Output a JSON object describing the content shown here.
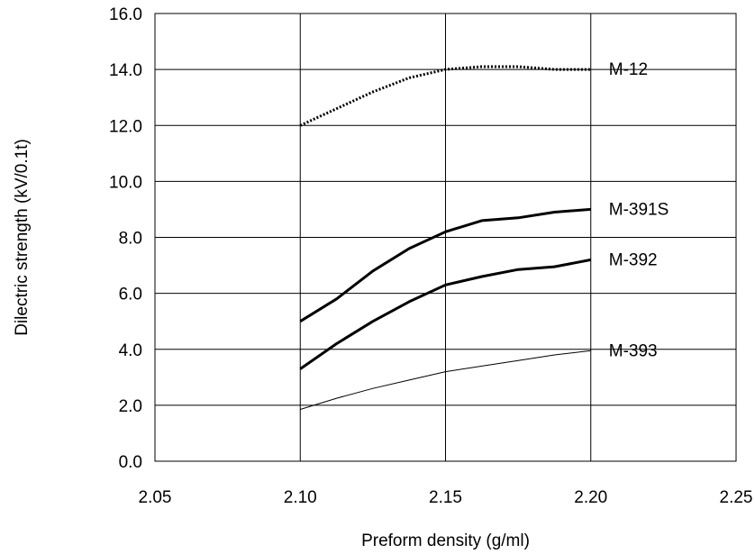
{
  "chart_data": {
    "type": "line",
    "xlabel": "Preform density (g/ml)",
    "ylabel": "Dilectric strength (kV/0.1t)",
    "xlim": [
      2.05,
      2.25
    ],
    "ylim": [
      0.0,
      16.0
    ],
    "x_ticks": [
      "2.05",
      "2.10",
      "2.15",
      "2.20",
      "2.25"
    ],
    "y_ticks": [
      "0.0",
      "2.0",
      "4.0",
      "6.0",
      "8.0",
      "10.0",
      "12.0",
      "14.0",
      "16.0"
    ],
    "grid": true,
    "legend": "inline labels at right end of each line",
    "series": [
      {
        "name": "M-12",
        "line_style": "dotted",
        "line_weight": "heavy",
        "color": "#000000",
        "x": [
          2.1,
          2.1125,
          2.125,
          2.1375,
          2.15,
          2.1625,
          2.175,
          2.1875,
          2.2
        ],
        "y": [
          12.0,
          12.6,
          13.2,
          13.7,
          14.0,
          14.1,
          14.1,
          14.0,
          14.0
        ]
      },
      {
        "name": "M-391S",
        "line_style": "solid",
        "line_weight": "heavy",
        "color": "#000000",
        "x": [
          2.1,
          2.1125,
          2.125,
          2.1375,
          2.15,
          2.1625,
          2.175,
          2.1875,
          2.2
        ],
        "y": [
          5.0,
          5.8,
          6.8,
          7.6,
          8.2,
          8.6,
          8.7,
          8.9,
          9.0
        ]
      },
      {
        "name": "M-392",
        "line_style": "solid",
        "line_weight": "heavy",
        "color": "#000000",
        "x": [
          2.1,
          2.1125,
          2.125,
          2.1375,
          2.15,
          2.1625,
          2.175,
          2.1875,
          2.2
        ],
        "y": [
          3.3,
          4.2,
          5.0,
          5.7,
          6.3,
          6.6,
          6.85,
          6.95,
          7.2
        ]
      },
      {
        "name": "M-393",
        "line_style": "solid",
        "line_weight": "thin",
        "color": "#000000",
        "x": [
          2.1,
          2.1125,
          2.125,
          2.1375,
          2.15,
          2.1625,
          2.175,
          2.1875,
          2.2
        ],
        "y": [
          1.85,
          2.25,
          2.6,
          2.9,
          3.2,
          3.4,
          3.6,
          3.8,
          3.95
        ]
      }
    ]
  }
}
